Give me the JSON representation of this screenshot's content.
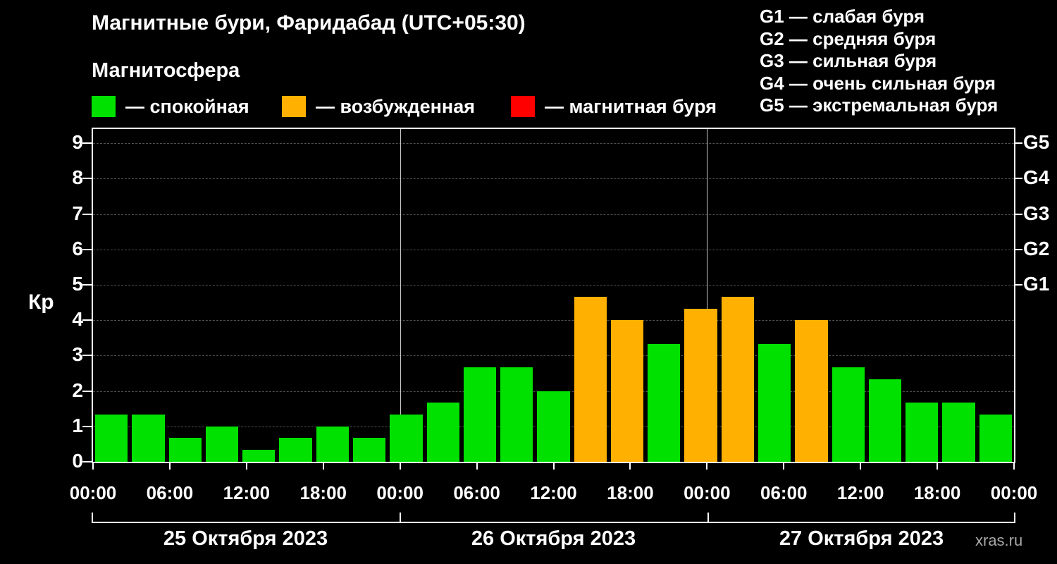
{
  "header": {
    "title": "Магнитные бури, Фаридабад (UTC+05:30)",
    "subtitle": "Магнитосфера",
    "watermark": "xras.ru"
  },
  "legend": {
    "items": [
      {
        "label": "— спокойная",
        "color": "#00e100"
      },
      {
        "label": "— возбужденная",
        "color": "#ffb000"
      },
      {
        "label": "— магнитная буря",
        "color": "#ff0000"
      }
    ]
  },
  "storm_scale_legend": [
    "G1 — слабая буря",
    "G2 — средняя буря",
    "G3 — сильная буря",
    "G4 — очень сильная буря",
    "G5 — экстремальная буря"
  ],
  "chart_data": {
    "type": "bar",
    "title": "Магнитные бури, Фаридабад (UTC+05:30)",
    "ylabel": "Кр",
    "ylim": [
      0,
      9.4
    ],
    "yticks": [
      0,
      1,
      2,
      3,
      4,
      5,
      6,
      7,
      8,
      9
    ],
    "grid": "dashed horizontal gridlines at each Kp integer",
    "legend_position": "top",
    "bar_interval_hours": 3,
    "bar_times": [
      "00:00",
      "03:00",
      "06:00",
      "09:00",
      "12:00",
      "15:00",
      "18:00",
      "21:00",
      "00:00",
      "03:00",
      "06:00",
      "09:00",
      "12:00",
      "15:00",
      "18:00",
      "21:00",
      "00:00",
      "03:00",
      "06:00",
      "09:00",
      "12:00",
      "15:00",
      "18:00",
      "21:00",
      "00:00"
    ],
    "values": [
      1.33,
      1.33,
      0.67,
      1,
      0.33,
      0.67,
      1,
      0.67,
      1.33,
      1.67,
      2.67,
      2.67,
      2,
      4.67,
      4,
      3.33,
      4.33,
      4.67,
      3.33,
      4,
      2.67,
      2.33,
      1.67,
      1.67,
      1.33
    ],
    "x_tick_labels": [
      "00:00",
      "06:00",
      "12:00",
      "18:00",
      "00:00",
      "06:00",
      "12:00",
      "18:00",
      "00:00",
      "06:00",
      "12:00",
      "18:00",
      "00:00"
    ],
    "day_labels": [
      "25 Октября 2023",
      "26 Октября 2023",
      "27 Октября 2023"
    ],
    "right_axis": [
      {
        "label": "G1",
        "kp": 5
      },
      {
        "label": "G2",
        "kp": 6
      },
      {
        "label": "G3",
        "kp": 7
      },
      {
        "label": "G4",
        "kp": 8
      },
      {
        "label": "G5",
        "kp": 9
      }
    ],
    "thresholds": {
      "excited_min": 4,
      "storm_min": 5
    },
    "colors": {
      "quiet": "#00e100",
      "excited": "#ffb000",
      "storm": "#ff0000",
      "grid": "#505050",
      "axis": "#ffffff",
      "background": "#000000"
    }
  }
}
